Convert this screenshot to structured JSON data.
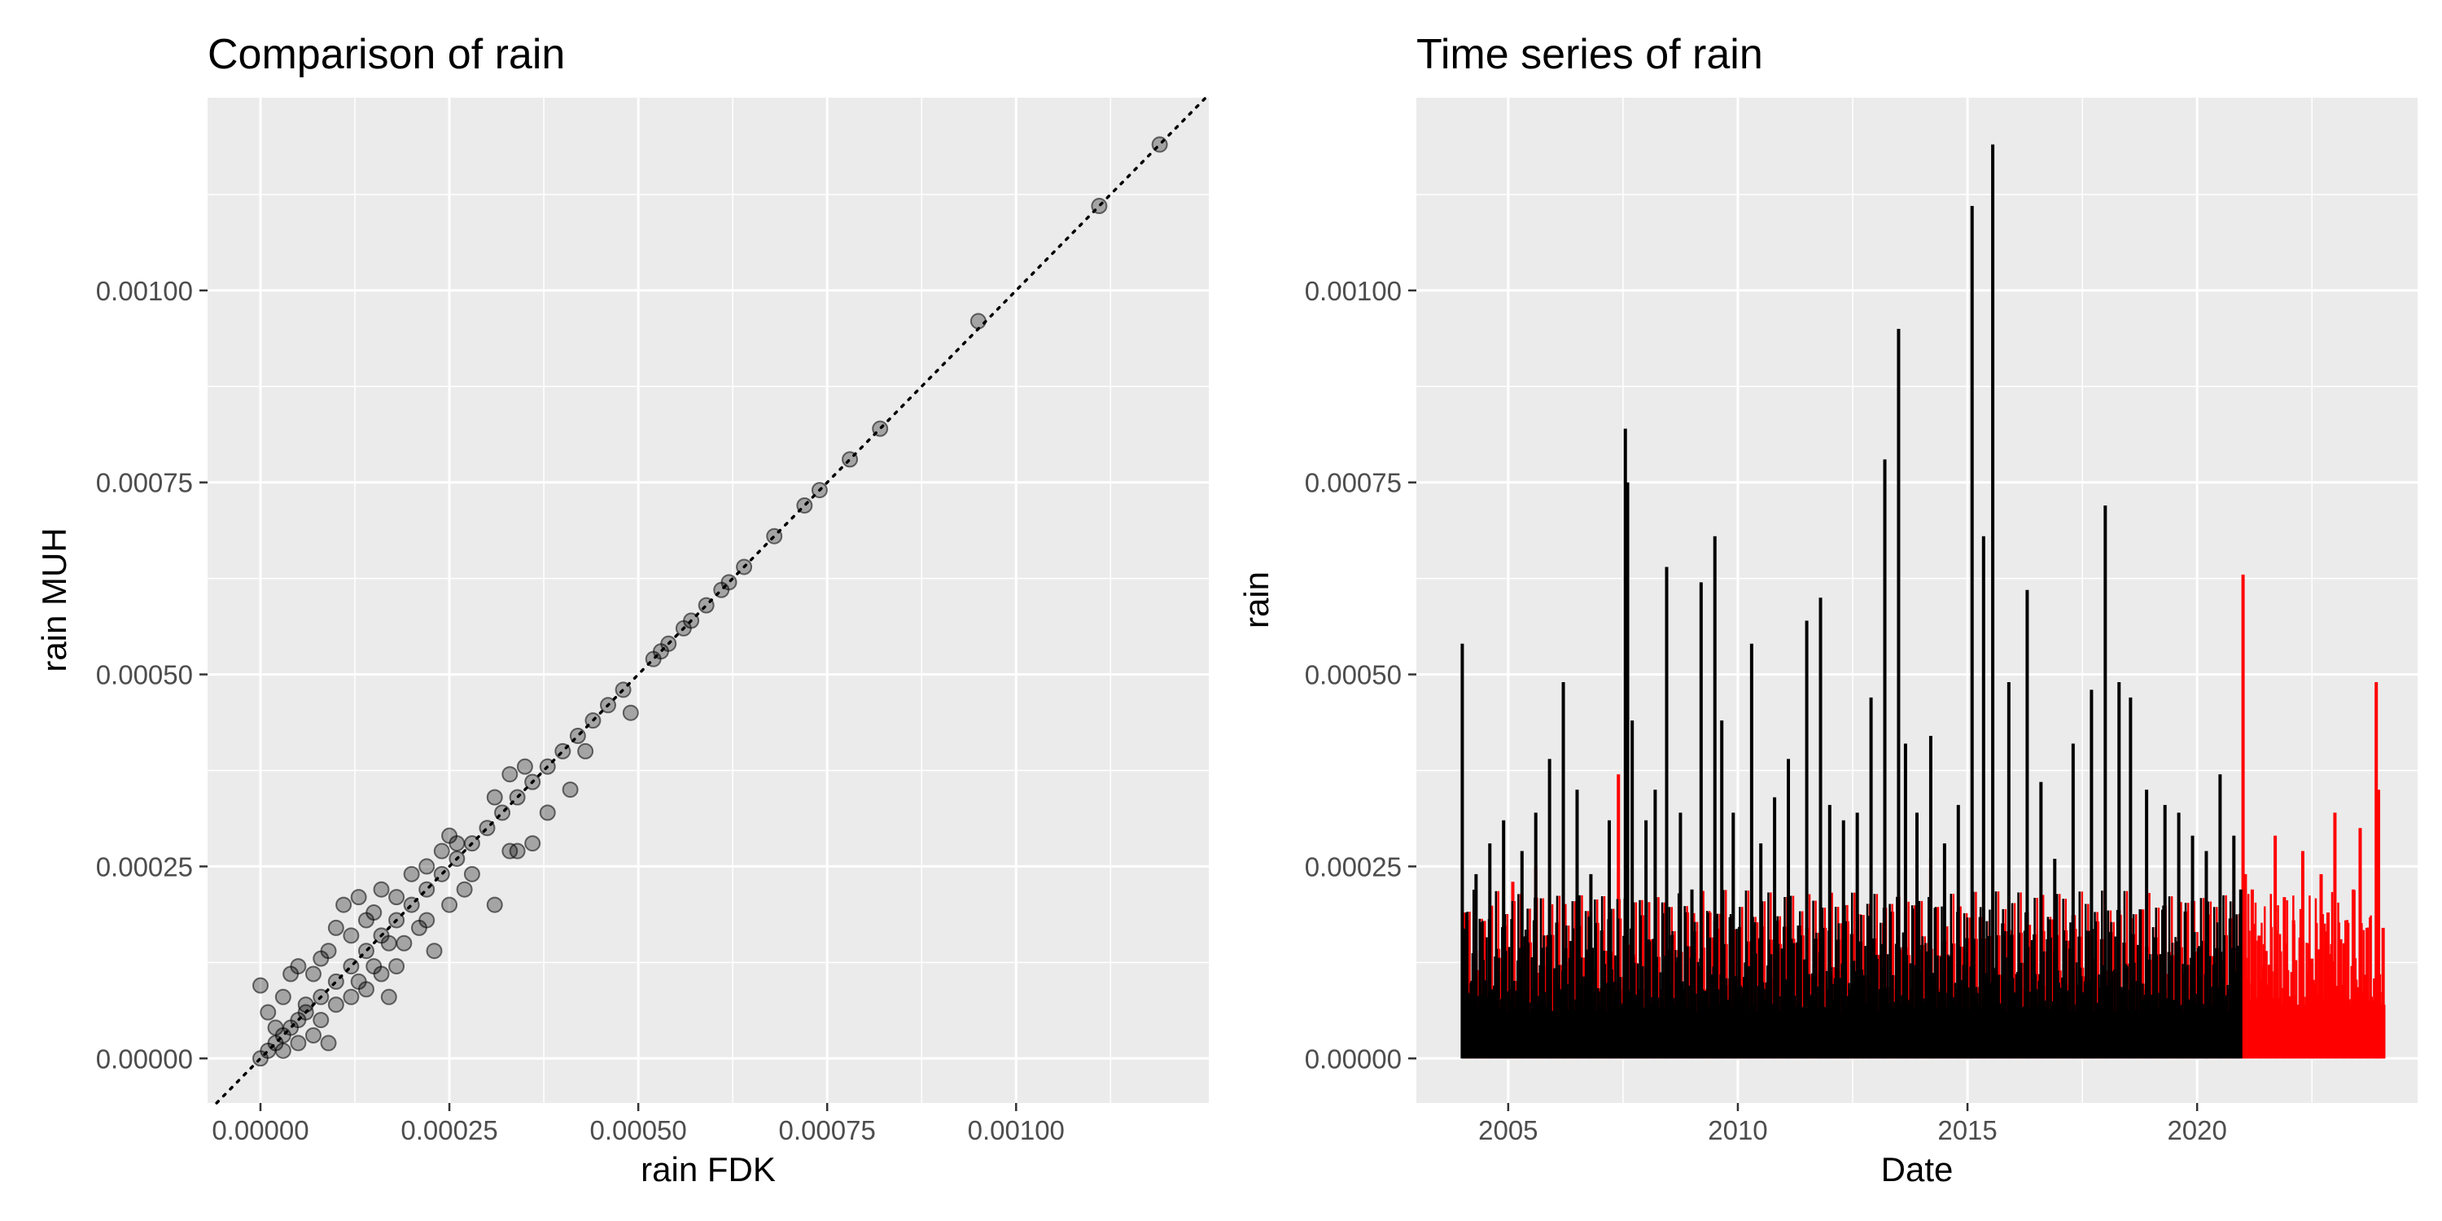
{
  "colors": {
    "panel_background": "#EBEBEB",
    "grid": "#FFFFFF",
    "points": "#000000",
    "line_primary": "#000000",
    "line_secondary": "#FF0000",
    "tick_text": "#4D4D4D"
  },
  "chart_data": [
    {
      "type": "scatter",
      "title": "Comparison of rain",
      "xlabel": "rain FDK",
      "ylabel": "rain MUH",
      "xlim": [
        -7e-05,
        0.001255
      ],
      "ylim": [
        -5.8e-05,
        0.001251
      ],
      "x_ticks": [
        0,
        0.00025,
        0.0005,
        0.00075,
        0.001
      ],
      "x_tick_labels": [
        "0.00000",
        "0.00025",
        "0.00050",
        "0.00075",
        "0.00100"
      ],
      "y_ticks": [
        0,
        0.00025,
        0.0005,
        0.00075,
        0.001
      ],
      "y_tick_labels": [
        "0.00000",
        "0.00025",
        "0.00050",
        "0.00075",
        "0.00100"
      ],
      "grid": true,
      "point_alpha": 0.3,
      "reference_line": {
        "style": "dotted",
        "slope": 1,
        "intercept": 0
      },
      "points": [
        [
          0.0,
          0.0
        ],
        [
          1e-05,
          1e-05
        ],
        [
          2e-05,
          2e-05
        ],
        [
          3e-05,
          3e-05
        ],
        [
          4e-05,
          4e-05
        ],
        [
          5e-05,
          5e-05
        ],
        [
          6e-05,
          6e-05
        ],
        [
          8e-05,
          8e-05
        ],
        [
          0.0001,
          0.0001
        ],
        [
          0.00012,
          0.00012
        ],
        [
          0.00014,
          0.00014
        ],
        [
          0.00016,
          0.00016
        ],
        [
          0.00018,
          0.00018
        ],
        [
          0.0002,
          0.0002
        ],
        [
          0.00022,
          0.00022
        ],
        [
          0.00024,
          0.00024
        ],
        [
          0.00026,
          0.00026
        ],
        [
          0.00028,
          0.00028
        ],
        [
          0.0003,
          0.0003
        ],
        [
          0.00032,
          0.00032
        ],
        [
          0.00034,
          0.00034
        ],
        [
          0.00036,
          0.00036
        ],
        [
          0.00038,
          0.00038
        ],
        [
          0.0004,
          0.0004
        ],
        [
          0.00042,
          0.00042
        ],
        [
          0.00044,
          0.00044
        ],
        [
          0.00046,
          0.00046
        ],
        [
          0.00048,
          0.00048
        ],
        [
          0.0,
          9.5e-05
        ],
        [
          1e-05,
          6e-05
        ],
        [
          2e-05,
          4e-05
        ],
        [
          3e-05,
          8e-05
        ],
        [
          4e-05,
          0.00011
        ],
        [
          5e-05,
          0.00012
        ],
        [
          6e-05,
          7e-05
        ],
        [
          7e-05,
          0.00011
        ],
        [
          8e-05,
          0.00013
        ],
        [
          9e-05,
          0.00014
        ],
        [
          0.0001,
          0.00017
        ],
        [
          0.00011,
          0.0002
        ],
        [
          0.00012,
          0.00016
        ],
        [
          0.00013,
          0.00021
        ],
        [
          0.00014,
          0.00018
        ],
        [
          0.00015,
          0.00019
        ],
        [
          0.00016,
          0.00022
        ],
        [
          0.00017,
          0.00015
        ],
        [
          0.00018,
          0.00021
        ],
        [
          0.0002,
          0.00024
        ],
        [
          0.00022,
          0.00025
        ],
        [
          0.00024,
          0.00027
        ],
        [
          0.00025,
          0.00029
        ],
        [
          0.00026,
          0.00028
        ],
        [
          0.00031,
          0.00034
        ],
        [
          0.00033,
          0.00037
        ],
        [
          0.00035,
          0.00038
        ],
        [
          3e-05,
          1e-05
        ],
        [
          5e-05,
          2e-05
        ],
        [
          7e-05,
          3e-05
        ],
        [
          8e-05,
          5e-05
        ],
        [
          9e-05,
          2e-05
        ],
        [
          0.0001,
          7e-05
        ],
        [
          0.00012,
          8e-05
        ],
        [
          0.00013,
          0.0001
        ],
        [
          0.00014,
          9e-05
        ],
        [
          0.00015,
          0.00012
        ],
        [
          0.00016,
          0.00011
        ],
        [
          0.00017,
          8e-05
        ],
        [
          0.00018,
          0.00012
        ],
        [
          0.00019,
          0.00015
        ],
        [
          0.00021,
          0.00017
        ],
        [
          0.00022,
          0.00018
        ],
        [
          0.00023,
          0.00014
        ],
        [
          0.00025,
          0.0002
        ],
        [
          0.00027,
          0.00022
        ],
        [
          0.00028,
          0.00024
        ],
        [
          0.00031,
          0.0002
        ],
        [
          0.00033,
          0.00027
        ],
        [
          0.00034,
          0.00027
        ],
        [
          0.00036,
          0.00028
        ],
        [
          0.00038,
          0.00032
        ],
        [
          0.00041,
          0.00035
        ],
        [
          0.00043,
          0.0004
        ],
        [
          0.00049,
          0.00045
        ],
        [
          0.00052,
          0.00052
        ],
        [
          0.00053,
          0.00053
        ],
        [
          0.00054,
          0.00054
        ],
        [
          0.00056,
          0.00056
        ],
        [
          0.00057,
          0.00057
        ],
        [
          0.00059,
          0.00059
        ],
        [
          0.00061,
          0.00061
        ],
        [
          0.00062,
          0.00062
        ],
        [
          0.00064,
          0.00064
        ],
        [
          0.00068,
          0.00068
        ],
        [
          0.00072,
          0.00072
        ],
        [
          0.00074,
          0.00074
        ],
        [
          0.00078,
          0.00078
        ],
        [
          0.00082,
          0.00082
        ],
        [
          0.00095,
          0.00096
        ],
        [
          0.00111,
          0.00111
        ],
        [
          0.00119,
          0.00119
        ]
      ]
    },
    {
      "type": "line",
      "title": "Time series of rain",
      "xlabel": "Date",
      "ylabel": "rain",
      "xlim": [
        2003.0,
        2024.8
      ],
      "ylim": [
        -5.8e-05,
        0.001251
      ],
      "x_ticks": [
        2005,
        2010,
        2015,
        2020
      ],
      "x_tick_labels": [
        "2005",
        "2010",
        "2015",
        "2020"
      ],
      "y_ticks": [
        0,
        0.00025,
        0.0005,
        0.00075,
        0.001
      ],
      "y_tick_labels": [
        "0.00000",
        "0.00025",
        "0.00050",
        "0.00075",
        "0.00100"
      ],
      "grid": true,
      "series": [
        {
          "color": "#FF0000",
          "x": [
            2004.05,
            2004.5,
            2005.1,
            2005.6,
            2006.3,
            2006.5,
            2007.4,
            2007.9,
            2010.5,
            2012.7,
            2013.2,
            2014.2,
            2016.6,
            2018.9,
            2019.7,
            2021.0,
            2021.05,
            2021.2,
            2021.35,
            2021.5,
            2021.7,
            2021.9,
            2022.1,
            2022.3,
            2022.5,
            2022.7,
            2022.85,
            2023.0,
            2023.2,
            2023.4,
            2023.55,
            2023.7,
            2023.9,
            2023.95,
            2024.05
          ],
          "y": [
            0.00019,
            9e-05,
            0.00023,
            0.00025,
            0.00012,
            0.00021,
            0.00037,
            0.00018,
            9e-05,
            0.00011,
            8e-05,
            0.00026,
            7e-05,
            9e-05,
            0.00011,
            0.00063,
            0.00024,
            0.00022,
            0.00016,
            0.00014,
            0.00029,
            0.00021,
            0.00018,
            0.00027,
            0.00013,
            0.00024,
            0.00019,
            0.00032,
            0.00015,
            0.00022,
            0.0003,
            0.00017,
            0.00049,
            0.00035,
            0.00017
          ]
        },
        {
          "color": "#000000",
          "x": [
            2004.0,
            2004.1,
            2004.3,
            2004.6,
            2004.9,
            2005.3,
            2005.6,
            2005.9,
            2006.2,
            2006.5,
            2006.8,
            2007.2,
            2007.55,
            2007.6,
            2007.7,
            2008.0,
            2008.2,
            2008.45,
            2008.75,
            2009.0,
            2009.2,
            2009.5,
            2009.65,
            2009.9,
            2010.3,
            2010.5,
            2010.8,
            2011.1,
            2011.5,
            2011.8,
            2012.0,
            2012.3,
            2012.6,
            2012.9,
            2013.2,
            2013.5,
            2013.65,
            2013.9,
            2014.2,
            2014.5,
            2014.8,
            2015.1,
            2015.35,
            2015.55,
            2015.9,
            2016.3,
            2016.6,
            2016.9,
            2017.3,
            2017.7,
            2018.0,
            2018.3,
            2018.55,
            2018.9,
            2019.3,
            2019.6,
            2019.9,
            2020.2,
            2020.5,
            2020.8,
            2020.95
          ],
          "y": [
            0.00054,
            0.00019,
            0.00024,
            0.00028,
            0.00031,
            0.00027,
            0.00032,
            0.00039,
            0.00049,
            0.00035,
            0.00024,
            0.00031,
            0.00082,
            0.00075,
            0.00044,
            0.00031,
            0.00035,
            0.00064,
            0.00032,
            0.00022,
            0.00062,
            0.00068,
            0.00044,
            0.00032,
            0.00054,
            0.00028,
            0.00034,
            0.00039,
            0.00057,
            0.0006,
            0.00033,
            0.00031,
            0.00032,
            0.00047,
            0.00078,
            0.00095,
            0.00041,
            0.00032,
            0.00042,
            0.00028,
            0.00033,
            0.00111,
            0.00068,
            0.00119,
            0.00049,
            0.00061,
            0.00036,
            0.00026,
            0.00041,
            0.00048,
            0.00072,
            0.00049,
            0.00047,
            0.00035,
            0.00033,
            0.00032,
            0.00029,
            0.00027,
            0.00037,
            0.00029,
            0.00022
          ]
        }
      ],
      "noise_fill": {
        "color": "#000000",
        "x_start": 2004.0,
        "x_end": 2021.0,
        "y_top": 9e-05
      },
      "secondary_fill": {
        "color": "#FF0000",
        "x_start": 2021.0,
        "x_end": 2024.1,
        "y_top": 7e-05
      }
    }
  ]
}
